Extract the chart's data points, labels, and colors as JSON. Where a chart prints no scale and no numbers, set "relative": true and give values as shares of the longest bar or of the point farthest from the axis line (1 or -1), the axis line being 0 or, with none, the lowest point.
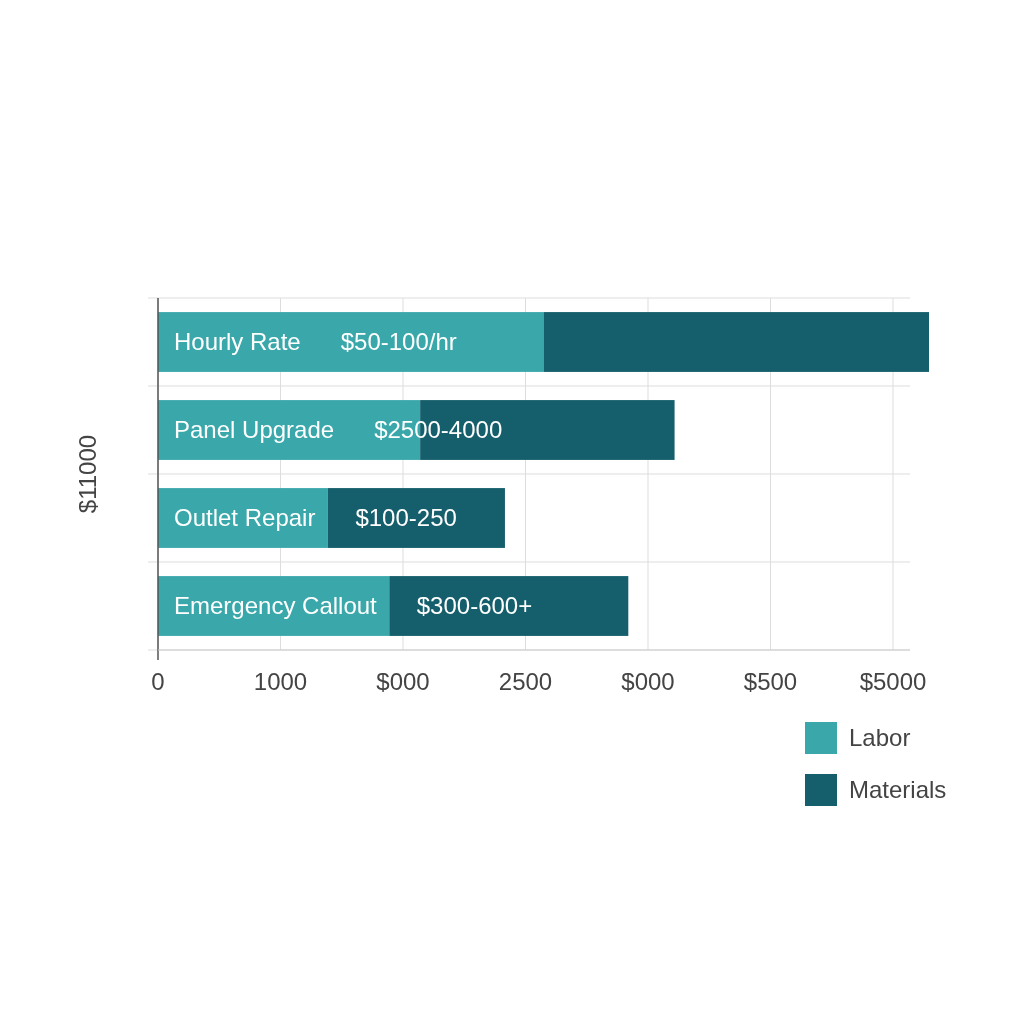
{
  "chart_data": {
    "type": "bar",
    "orientation": "horizontal",
    "stacked": true,
    "relative": true,
    "ylabel": "$11000",
    "categories": [
      "Hourly Rate",
      "Panel Upgrade",
      "Outlet Repair",
      "Emergency Callout"
    ],
    "series": [
      {
        "name": "Labor",
        "color": "#3aa8ab",
        "values": [
          0.5,
          0.34,
          0.22,
          0.3
        ]
      },
      {
        "name": "Materials",
        "color": "#155e6b",
        "values": [
          0.5,
          0.33,
          0.23,
          0.31
        ]
      }
    ],
    "value_labels": [
      "$50-100/hr",
      "$2500-4000",
      "$100-250",
      "$300-600+"
    ],
    "annotations": [
      "0",
      "1000",
      "$000",
      "2500",
      "$000",
      "$500",
      "$5000"
    ],
    "grid": true,
    "legend": "bottom right"
  }
}
